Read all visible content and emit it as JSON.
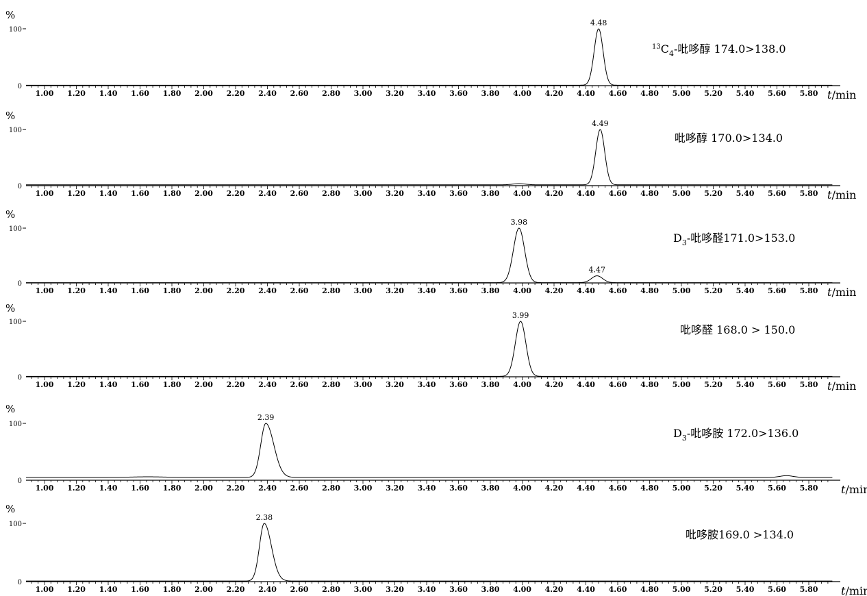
{
  "chart_data": [
    {
      "type": "line",
      "y_unit": "%",
      "y_ticks": [
        "0",
        "100"
      ],
      "ylim": [
        0,
        100
      ],
      "x_unit_symbol": "t",
      "x_unit_suffix": "/min",
      "xlim": [
        0.85,
        5.95
      ],
      "x_ticks": [
        "1.00",
        "1.20",
        "1.40",
        "1.60",
        "1.80",
        "2.00",
        "2.20",
        "2.40",
        "2.60",
        "2.80",
        "3.00",
        "3.20",
        "3.40",
        "3.60",
        "3.80",
        "4.00",
        "4.20",
        "4.40",
        "4.60",
        "4.80",
        "5.00",
        "5.20",
        "5.40",
        "5.60",
        "5.80"
      ],
      "legend_prefix": "13",
      "legend_main": "C",
      "legend_sub": "4",
      "legend_rest": "-吡哆醇 174.0>138.0",
      "peaks": [
        {
          "rt": 4.48,
          "label": "4.48",
          "height": 100,
          "width": 0.028
        }
      ],
      "baseline": 0.8,
      "bumps": []
    },
    {
      "type": "line",
      "y_unit": "%",
      "y_ticks": [
        "0",
        "100"
      ],
      "ylim": [
        0,
        100
      ],
      "x_unit_symbol": "t",
      "x_unit_suffix": "/min",
      "xlim": [
        0.85,
        5.95
      ],
      "x_ticks": [
        "1.00",
        "1.20",
        "1.40",
        "1.60",
        "1.80",
        "2.00",
        "2.20",
        "2.40",
        "2.60",
        "2.80",
        "3.00",
        "3.20",
        "3.40",
        "3.60",
        "3.80",
        "4.00",
        "4.20",
        "4.40",
        "4.60",
        "4.80",
        "5.00",
        "5.20",
        "5.40",
        "5.60",
        "5.80"
      ],
      "legend_prefix": "",
      "legend_main": "",
      "legend_sub": "",
      "legend_rest": "吡哆醇 170.0>134.0",
      "peaks": [
        {
          "rt": 4.49,
          "label": "4.49",
          "height": 100,
          "width": 0.028
        }
      ],
      "baseline": 1.5,
      "bumps": [
        {
          "rt": 3.98,
          "height": 2,
          "width": 0.04
        }
      ]
    },
    {
      "type": "line",
      "y_unit": "%",
      "y_ticks": [
        "0",
        "100"
      ],
      "ylim": [
        0,
        100
      ],
      "x_unit_symbol": "t",
      "x_unit_suffix": "/min",
      "xlim": [
        0.85,
        5.95
      ],
      "x_ticks": [
        "1.00",
        "1.20",
        "1.40",
        "1.60",
        "1.80",
        "2.00",
        "2.20",
        "2.40",
        "2.60",
        "2.80",
        "3.00",
        "3.20",
        "3.40",
        "3.60",
        "3.80",
        "4.00",
        "4.20",
        "4.40",
        "4.60",
        "4.80",
        "5.00",
        "5.20",
        "5.40",
        "5.60",
        "5.80"
      ],
      "legend_prefix": "",
      "legend_main": "D",
      "legend_sub": "3",
      "legend_rest": "-吡哆醛171.0>153.0",
      "peaks": [
        {
          "rt": 3.98,
          "label": "3.98",
          "height": 100,
          "width": 0.035
        },
        {
          "rt": 4.47,
          "label": "4.47",
          "height": 13,
          "width": 0.035
        }
      ],
      "baseline": 0.5,
      "bumps": []
    },
    {
      "type": "line",
      "y_unit": "%",
      "y_ticks": [
        "0",
        "100"
      ],
      "ylim": [
        0,
        100
      ],
      "x_unit_symbol": "t",
      "x_unit_suffix": "/min",
      "xlim": [
        0.85,
        5.95
      ],
      "x_ticks": [
        "1.00",
        "1.20",
        "1.40",
        "1.60",
        "1.80",
        "2.00",
        "2.20",
        "2.40",
        "2.60",
        "2.80",
        "3.00",
        "3.20",
        "3.40",
        "3.60",
        "3.80",
        "4.00",
        "4.20",
        "4.40",
        "4.60",
        "4.80",
        "5.00",
        "5.20",
        "5.40",
        "5.60",
        "5.80"
      ],
      "legend_prefix": "",
      "legend_main": "",
      "legend_sub": "",
      "legend_rest": "吡哆醛 168.0 > 150.0",
      "peaks": [
        {
          "rt": 3.99,
          "label": "3.99",
          "height": 100,
          "width": 0.033
        }
      ],
      "baseline": 0.8,
      "bumps": []
    },
    {
      "type": "line",
      "y_unit": "%",
      "y_ticks": [
        "0",
        "100"
      ],
      "ylim": [
        0,
        100
      ],
      "x_unit_symbol": "t",
      "x_unit_suffix": "/min",
      "xlim": [
        0.85,
        5.95
      ],
      "x_ticks": [
        "1.00",
        "1.20",
        "1.40",
        "1.60",
        "1.80",
        "2.00",
        "2.20",
        "2.40",
        "2.60",
        "2.80",
        "3.00",
        "3.20",
        "3.40",
        "3.60",
        "3.80",
        "4.00",
        "4.20",
        "4.40",
        "4.60",
        "4.80",
        "5.00",
        "5.20",
        "5.40",
        "5.60",
        "5.80"
      ],
      "legend_prefix": "",
      "legend_main": "D",
      "legend_sub": "3",
      "legend_rest": "-吡哆胺 172.0>136.0",
      "peaks": [
        {
          "rt": 2.39,
          "label": "2.39",
          "height": 100,
          "width": 0.032,
          "tail": 0.05
        }
      ],
      "baseline": 5,
      "bumps": [
        {
          "rt": 1.65,
          "height": 1,
          "width": 0.1
        },
        {
          "rt": 5.66,
          "height": 3,
          "width": 0.04
        }
      ]
    },
    {
      "type": "line",
      "y_unit": "%",
      "y_ticks": [
        "0",
        "100"
      ],
      "ylim": [
        0,
        100
      ],
      "x_unit_symbol": "t",
      "x_unit_suffix": "/min",
      "xlim": [
        0.85,
        5.95
      ],
      "x_ticks": [
        "1.00",
        "1.20",
        "1.40",
        "1.60",
        "1.80",
        "2.00",
        "2.20",
        "2.40",
        "2.60",
        "2.80",
        "3.00",
        "3.20",
        "3.40",
        "3.60",
        "3.80",
        "4.00",
        "4.20",
        "4.40",
        "4.60",
        "4.80",
        "5.00",
        "5.20",
        "5.40",
        "5.60",
        "5.80"
      ],
      "legend_prefix": "",
      "legend_main": "",
      "legend_sub": "",
      "legend_rest": "吡哆胺169.0 >134.0",
      "peaks": [
        {
          "rt": 2.38,
          "label": "2.38",
          "height": 100,
          "width": 0.03,
          "tail": 0.045
        }
      ],
      "baseline": 1,
      "bumps": []
    }
  ]
}
